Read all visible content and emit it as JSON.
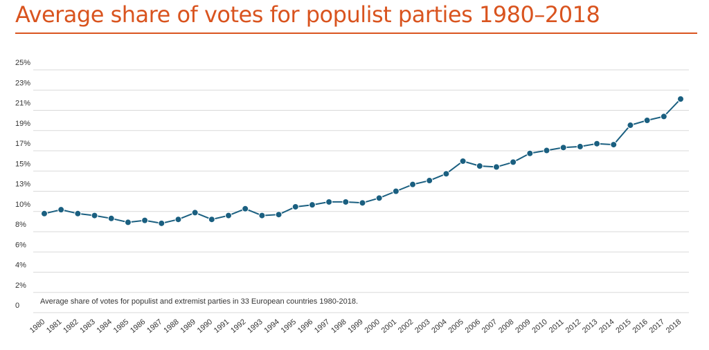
{
  "title": "Average share of votes for populist parties 1980–2018",
  "colors": {
    "title": "#d9541f",
    "line": "#1a5f80",
    "grid": "#d9d9d9"
  },
  "chart_data": {
    "type": "line",
    "title": "Average share of votes for populist parties 1980–2018",
    "annotation": "Average share of votes for populist and extremist parties in 33 European countries 1980-2018.",
    "y_tick_labels": [
      "0",
      "2%",
      "4%",
      "6%",
      "8%",
      "10%",
      "13%",
      "15%",
      "17%",
      "19%",
      "21%",
      "23%",
      "25%"
    ],
    "x": [
      "1980",
      "1981",
      "1982",
      "1983",
      "1984",
      "1985",
      "1986",
      "1987",
      "1988",
      "1989",
      "1990",
      "1991",
      "1992",
      "1993",
      "1994",
      "1995",
      "1996",
      "1997",
      "1998",
      "1999",
      "2000",
      "2001",
      "2002",
      "2003",
      "2004",
      "2005",
      "2006",
      "2007",
      "2008",
      "2009",
      "2010",
      "2011",
      "2012",
      "2013",
      "2014",
      "2015",
      "2016",
      "2017",
      "2018"
    ],
    "series": [
      {
        "values": [
          10.2,
          10.6,
          10.2,
          10.0,
          9.7,
          9.3,
          9.5,
          9.2,
          9.6,
          10.3,
          9.6,
          10.0,
          10.7,
          10.0,
          10.1,
          10.9,
          11.1,
          11.4,
          11.4,
          11.3,
          11.8,
          12.5,
          13.2,
          13.6,
          14.3,
          15.6,
          15.1,
          15.0,
          15.5,
          16.4,
          16.7,
          17.0,
          17.1,
          17.4,
          17.3,
          19.3,
          19.8,
          20.2,
          22.0
        ]
      }
    ],
    "ylim": [
      0,
      25
    ],
    "grid": true,
    "legend": "none"
  }
}
